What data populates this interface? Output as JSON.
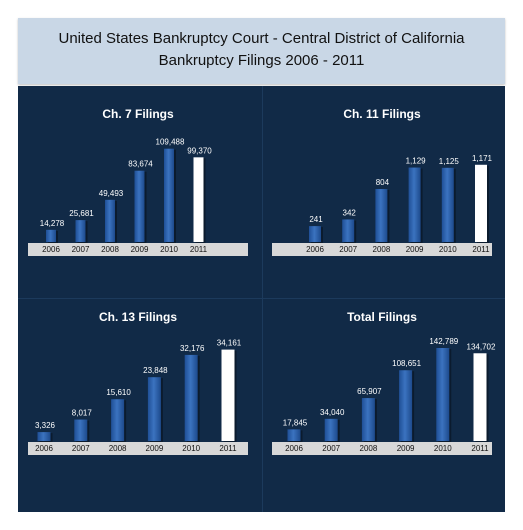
{
  "header": {
    "line1": "United States Bankruptcy Court - Central District of California",
    "line2": "Bankruptcy Filings 2006 - 2011"
  },
  "colors": {
    "bar": "#3b73c0",
    "bar_highlight": "#ffffff",
    "panel": "#112a47",
    "axis_strip": "#d8d8d8"
  },
  "chart_data": [
    {
      "type": "bar",
      "title": "Ch. 7 Filings",
      "categories": [
        "2006",
        "2007",
        "2008",
        "2009",
        "2010",
        "2011"
      ],
      "values": [
        14278,
        25681,
        49493,
        83674,
        109488,
        99370
      ],
      "value_labels": [
        "14,278",
        "25,681",
        "49,493",
        "83,674",
        "109,488",
        "99,370"
      ],
      "ylim": [
        0,
        115000
      ]
    },
    {
      "type": "bar",
      "title": "Ch. 11 Filings",
      "categories": [
        "2006",
        "2007",
        "2008",
        "2009",
        "2010",
        "2011"
      ],
      "values": [
        241,
        342,
        804,
        1129,
        1125,
        1171
      ],
      "value_labels": [
        "241",
        "342",
        "804",
        "1,129",
        "1,125",
        "1,171"
      ],
      "ylim": [
        0,
        1380
      ]
    },
    {
      "type": "bar",
      "title": "Ch. 13 Filings",
      "categories": [
        "2006",
        "2007",
        "2008",
        "2009",
        "2010",
        "2011"
      ],
      "values": [
        3326,
        8017,
        15610,
        23848,
        32176,
        34161
      ],
      "value_labels": [
        "3,326",
        "8,017",
        "15,610",
        "23,848",
        "32,176",
        "34,161"
      ],
      "ylim": [
        0,
        37000
      ]
    },
    {
      "type": "bar",
      "title": "Total Filings",
      "categories": [
        "2006",
        "2007",
        "2008",
        "2009",
        "2010",
        "2011"
      ],
      "values": [
        17845,
        34040,
        65907,
        108651,
        142789,
        134702
      ],
      "value_labels": [
        "17,845",
        "34,040",
        "65,907",
        "108,651",
        "142,789",
        "134,702"
      ],
      "ylim": [
        0,
        152000
      ]
    }
  ]
}
